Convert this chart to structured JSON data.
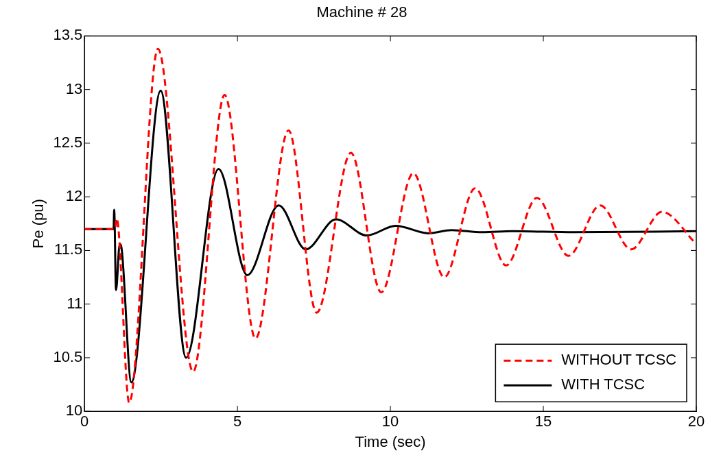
{
  "chart_data": {
    "type": "line",
    "title": "Machine # 28",
    "xlabel": "Time (sec)",
    "ylabel": "Pe (pu)",
    "xlim": [
      0,
      20
    ],
    "xticks": [
      0,
      5,
      10,
      15,
      20
    ],
    "ylim": [
      10,
      13.5
    ],
    "yticks": [
      10,
      10.5,
      11,
      11.5,
      12,
      12.5,
      13,
      13.5
    ],
    "grid": false,
    "legend": "bottom right",
    "marker": "none",
    "series": [
      {
        "name": "WITHOUT TCSC",
        "color": "#ff0000",
        "line_style": "dashed",
        "x": [
          0,
          1.0,
          1.05,
          1.46,
          2.4,
          3.55,
          4.58,
          5.59,
          6.67,
          7.59,
          8.71,
          9.7,
          10.75,
          11.76,
          12.77,
          13.78,
          14.79,
          15.82,
          16.86,
          17.87,
          18.88,
          20
        ],
        "values": [
          11.7,
          11.7,
          11.8,
          10.08,
          13.38,
          10.37,
          12.95,
          10.68,
          12.62,
          10.92,
          12.41,
          11.11,
          12.22,
          11.25,
          12.08,
          11.36,
          11.99,
          11.45,
          11.92,
          11.51,
          11.86,
          11.56
        ]
      },
      {
        "name": "WITH TCSC",
        "color": "#000000",
        "line_style": "solid",
        "x": [
          0,
          0.95,
          0.97,
          1.03,
          1.15,
          1.22,
          1.53,
          2.49,
          3.32,
          4.38,
          5.32,
          6.35,
          7.23,
          8.22,
          9.23,
          10.17,
          11.25,
          12.0,
          13.0,
          14.0,
          16.0,
          20
        ],
        "values": [
          11.7,
          11.7,
          11.88,
          11.13,
          11.56,
          11.5,
          10.27,
          12.99,
          10.5,
          12.26,
          11.27,
          11.92,
          11.51,
          11.79,
          11.64,
          11.73,
          11.66,
          11.69,
          11.67,
          11.68,
          11.67,
          11.68
        ]
      }
    ]
  }
}
